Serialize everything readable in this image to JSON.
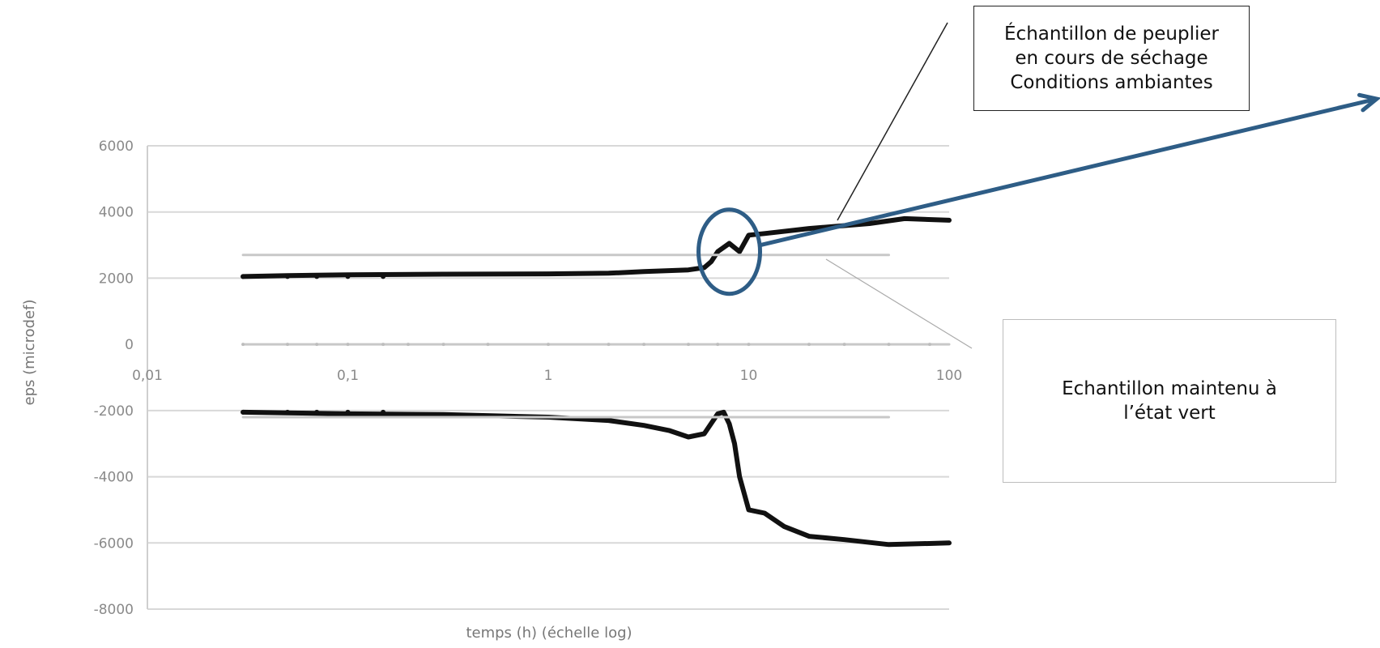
{
  "chart_data": {
    "type": "line",
    "title": "",
    "xlabel": "temps (h) (échelle log)",
    "ylabel": "eps (microdef)",
    "x_scale": "log",
    "xlim": [
      0.01,
      100
    ],
    "ylim": [
      -8000,
      6000
    ],
    "x_ticks": [
      "0,01",
      "0,1",
      "1",
      "10",
      "100"
    ],
    "y_ticks": [
      "6000",
      "4000",
      "2000",
      "0",
      "-2000",
      "-4000",
      "-6000",
      "-8000"
    ],
    "grid": "horizontal",
    "legend": "none",
    "series": [
      {
        "color": "#111111",
        "x": [
          0.03,
          0.05,
          0.1,
          0.3,
          1,
          2,
          3,
          5,
          6,
          6.5,
          7,
          8,
          9,
          10,
          12,
          20,
          40,
          60,
          100
        ],
        "y": [
          2050,
          2080,
          2100,
          2120,
          2130,
          2150,
          2200,
          2250,
          2320,
          2500,
          2800,
          3050,
          2800,
          3300,
          3350,
          3500,
          3650,
          3800,
          3750
        ]
      },
      {
        "color": "#111111",
        "x": [
          0.03,
          0.05,
          0.1,
          0.3,
          1,
          2,
          3,
          4,
          5,
          6,
          7,
          7.5,
          8,
          8.5,
          9,
          10,
          12,
          15,
          20,
          30,
          50,
          100
        ],
        "y": [
          -2050,
          -2070,
          -2100,
          -2120,
          -2200,
          -2300,
          -2450,
          -2600,
          -2800,
          -2700,
          -2100,
          -2050,
          -2400,
          -3000,
          -4000,
          -5000,
          -5100,
          -5500,
          -5800,
          -5900,
          -6050,
          -6000
        ]
      },
      {
        "color": "#c8c8c8",
        "x": [
          0.03,
          50
        ],
        "y": [
          2700,
          2700
        ]
      },
      {
        "color": "#c8c8c8",
        "x": [
          0.03,
          50
        ],
        "y": [
          -2200,
          -2200
        ]
      },
      {
        "color": "#c8c8c8",
        "x": [
          0.03,
          100
        ],
        "y": [
          0,
          0
        ]
      }
    ],
    "annotations": [
      {
        "lines": [
          "Échantillon de peuplier",
          "en cours de séchage",
          "Conditions ambiantes"
        ]
      },
      {
        "lines": [
          "Echantillon maintenu à",
          "l’état vert"
        ]
      }
    ],
    "highlight_ellipse": {
      "x": 8,
      "y": 2800
    },
    "colors": {
      "arrow": "#2e5d86",
      "ellipse": "#2e5d86",
      "grid": "#d8d8d8",
      "axis": "#cfcfcf"
    }
  }
}
